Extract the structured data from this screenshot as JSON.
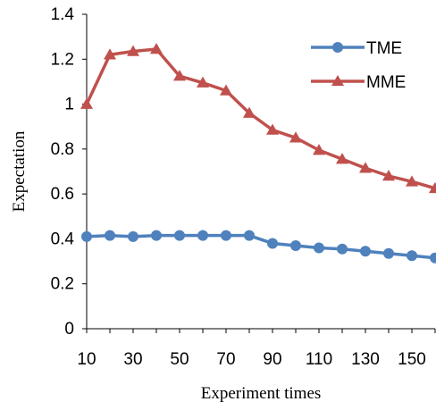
{
  "chart_data": {
    "type": "line",
    "title": "",
    "xlabel": "Experiment times",
    "ylabel": "Expectation",
    "x": [
      10,
      20,
      30,
      40,
      50,
      60,
      70,
      80,
      90,
      100,
      110,
      120,
      130,
      140,
      150,
      160
    ],
    "x_tick_labels": [
      "10",
      "30",
      "50",
      "70",
      "90",
      "110",
      "130",
      "150"
    ],
    "x_tick_values": [
      10,
      30,
      50,
      70,
      90,
      110,
      130,
      150
    ],
    "xlim": [
      10,
      160
    ],
    "ylim": [
      0,
      1.4
    ],
    "y_ticks": [
      0,
      0.2,
      0.4,
      0.6,
      0.8,
      1,
      1.2,
      1.4
    ],
    "y_tick_labels": [
      "0",
      "0.2",
      "0.4",
      "0.6",
      "0.8",
      "1",
      "1.2",
      "1.4"
    ],
    "grid": false,
    "legend_position": "top-right",
    "series": [
      {
        "name": "TME",
        "color": "#4F81BD",
        "marker": "circle",
        "values": [
          0.41,
          0.415,
          0.41,
          0.415,
          0.415,
          0.415,
          0.415,
          0.415,
          0.38,
          0.37,
          0.36,
          0.355,
          0.345,
          0.335,
          0.325,
          0.315
        ]
      },
      {
        "name": "MME",
        "color": "#C0504D",
        "marker": "triangle",
        "values": [
          1.0,
          1.22,
          1.235,
          1.245,
          1.125,
          1.095,
          1.06,
          0.96,
          0.885,
          0.85,
          0.795,
          0.755,
          0.715,
          0.68,
          0.655,
          0.625
        ]
      }
    ]
  }
}
